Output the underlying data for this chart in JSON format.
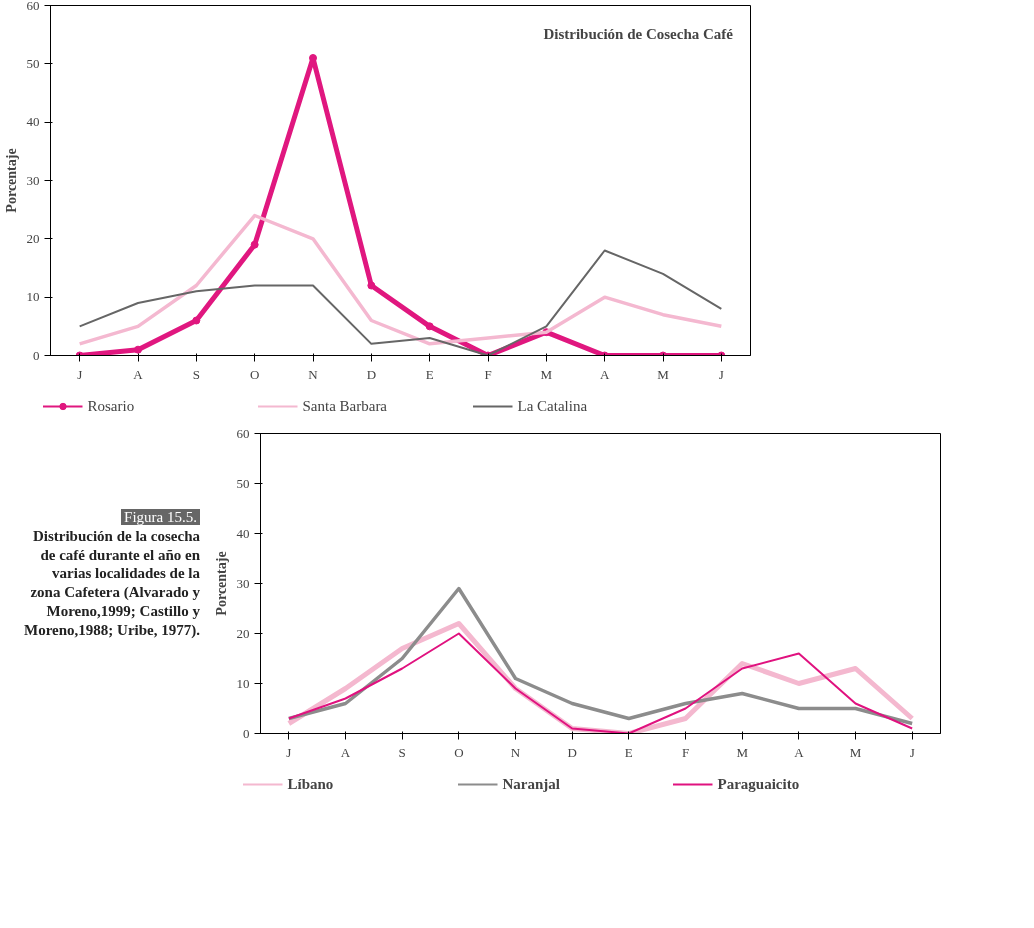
{
  "chart_data": [
    {
      "type": "line",
      "title": "Distribución de Cosecha Café",
      "ylabel": "Porcentaje",
      "categories": [
        "J",
        "A",
        "S",
        "O",
        "N",
        "D",
        "E",
        "F",
        "M",
        "A",
        "M",
        "J"
      ],
      "ylim": [
        0,
        60
      ],
      "yticks": [
        0,
        10,
        20,
        30,
        40,
        50,
        60
      ],
      "grid": false,
      "legend": "bottom",
      "line_style": "solid",
      "series": [
        {
          "name": "Rosario",
          "color": "#e0177f",
          "marker": "circle",
          "values": [
            0,
            1,
            6,
            19,
            51,
            12,
            5,
            0,
            4,
            0,
            0,
            0
          ]
        },
        {
          "name": "Santa Barbara",
          "color": "#f4b8d0",
          "marker": "none",
          "values": [
            2,
            5,
            12,
            24,
            20,
            6,
            2,
            3,
            4,
            10,
            7,
            5
          ]
        },
        {
          "name": "La Catalina",
          "color": "#666666",
          "marker": "none",
          "values": [
            5,
            9,
            11,
            12,
            12,
            2,
            3,
            0,
            5,
            18,
            14,
            8
          ]
        }
      ]
    },
    {
      "type": "line",
      "ylabel": "Porcentaje",
      "categories": [
        "J",
        "A",
        "S",
        "O",
        "N",
        "D",
        "E",
        "F",
        "M",
        "A",
        "M",
        "J"
      ],
      "ylim": [
        0,
        60
      ],
      "yticks": [
        0,
        10,
        20,
        30,
        40,
        50,
        60
      ],
      "grid": false,
      "legend": "bottom",
      "line_style": "solid",
      "annotations": [
        "Figura 15.5.",
        "Distribución de la cosecha de café durante el año en varias localidades de la zona Cafetera (Alvarado y Moreno,1999; Castillo y Moreno,1988; Uribe, 1977)."
      ],
      "series": [
        {
          "name": "Líbano",
          "color": "#f4b8cf",
          "marker": "none",
          "values": [
            2,
            9,
            17,
            22,
            9,
            1,
            0,
            3,
            14,
            10,
            13,
            3
          ]
        },
        {
          "name": "Naranjal",
          "color": "#8c8c8c",
          "marker": "none",
          "values": [
            3,
            6,
            15,
            29,
            11,
            6,
            3,
            6,
            8,
            5,
            5,
            2
          ]
        },
        {
          "name": "Paraguaicito",
          "color": "#e0127f",
          "marker": "none",
          "values": [
            3,
            7,
            13,
            20,
            9,
            1,
            0,
            5,
            13,
            16,
            6,
            1
          ]
        }
      ]
    }
  ]
}
